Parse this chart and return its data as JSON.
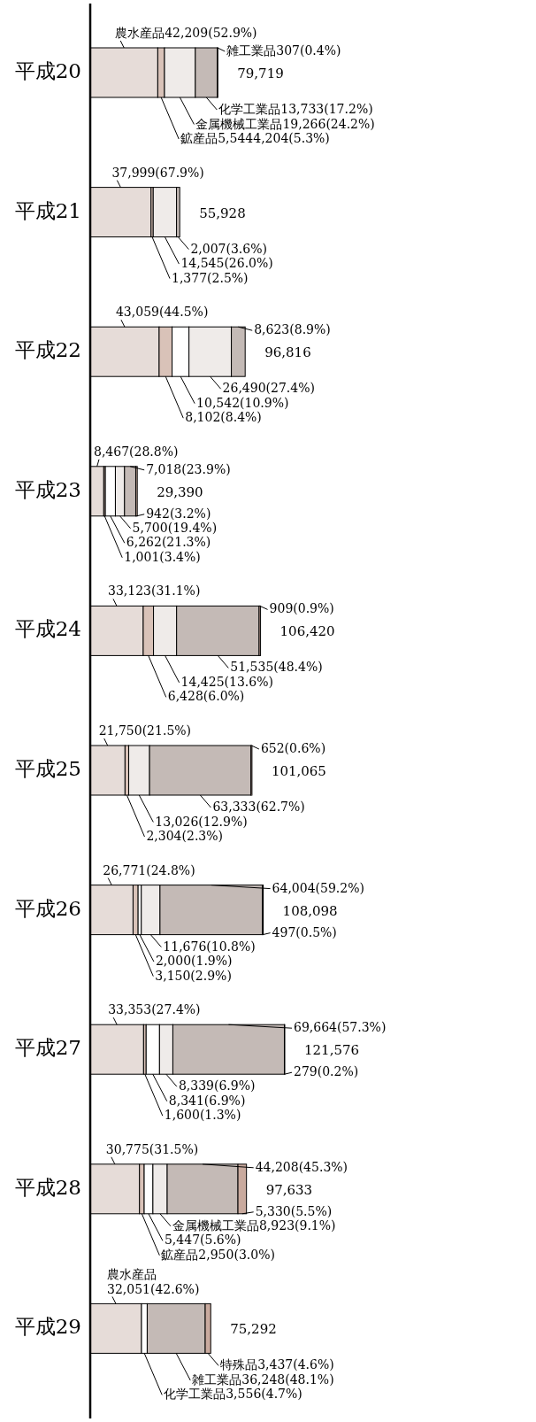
{
  "chart_data": {
    "type": "bar",
    "orientation": "horizontal",
    "stacked": true,
    "categories": [
      "平成20",
      "平成21",
      "平成22",
      "平成23",
      "平成24",
      "平成25",
      "平成26",
      "平成27",
      "平成28",
      "平成29"
    ],
    "series": [
      {
        "color": "#e6dcd8",
        "values": [
          42209,
          37999,
          43059,
          8467,
          33123,
          21750,
          26771,
          33353,
          30775,
          32051
        ],
        "value_labels": [
          "農水産品42,209(52.9%)",
          "37,999(67.9%)",
          "43,059(44.5%)",
          "8,467(28.8%)",
          "33,123(31.1%)",
          "21,750(21.5%)",
          "26,771(24.8%)",
          "33,353(27.4%)",
          "30,775(31.5%)",
          "農水産品\n32,051(42.6%)"
        ]
      },
      {
        "color": "#d9c2b8",
        "values": [
          4204,
          1377,
          8102,
          1001,
          6428,
          2304,
          3150,
          1600,
          2950,
          null
        ],
        "value_labels": [
          "鉱産品5,5444,204(5.3%)",
          "1,377(2.5%)",
          "8,102(8.4%)",
          "1,001(3.4%)",
          "6,428(6.0%)",
          "2,304(2.3%)",
          "3,150(2.9%)",
          "1,600(1.3%)",
          "鉱産品2,950(3.0%)",
          null
        ]
      },
      {
        "color": "#ffffff",
        "values": [
          null,
          null,
          10542,
          6262,
          null,
          null,
          2000,
          8341,
          5447,
          3556
        ],
        "value_labels": [
          null,
          null,
          "10,542(10.9%)",
          "6,262(21.3%)",
          null,
          null,
          "2,000(1.9%)",
          "8,341(6.9%)",
          "5,447(5.6%)",
          "化学工業品3,556(4.7%)"
        ]
      },
      {
        "color": "#efebe9",
        "values": [
          19266,
          14545,
          26490,
          5700,
          14425,
          13026,
          11676,
          8339,
          8923,
          null
        ],
        "value_labels": [
          "金属機械工業品19,266(24.2%)",
          "14,545(26.0%)",
          "26,490(27.4%)",
          "5,700(19.4%)",
          "14,425(13.6%)",
          "13,026(12.9%)",
          "11,676(10.8%)",
          "8,339(6.9%)",
          "金属機械工業品8,923(9.1%)",
          null
        ]
      },
      {
        "color": "#c4bab6",
        "values": [
          13733,
          2007,
          8623,
          7018,
          51535,
          63333,
          64004,
          69664,
          44208,
          36248
        ],
        "value_labels": [
          "化学工業品13,733(17.2%)",
          "2,007(3.6%)",
          "8,623(8.9%)",
          "7,018(23.9%)",
          "51,535(48.4%)",
          "63,333(62.7%)",
          "64,004(59.2%)",
          "69,664(57.3%)",
          "44,208(45.3%)",
          "雑工業品36,248(48.1%)"
        ]
      },
      {
        "color": "#c9aa9e",
        "values": [
          307,
          null,
          null,
          942,
          909,
          652,
          497,
          279,
          5330,
          3437
        ],
        "value_labels": [
          "雑工業品307(0.4%)",
          null,
          null,
          "942(3.2%)",
          "909(0.9%)",
          "652(0.6%)",
          "497(0.5%)",
          "279(0.2%)",
          "5,330(5.5%)",
          "特殊品3,437(4.6%)"
        ]
      }
    ],
    "totals": [
      "79,719",
      "55,928",
      "96,816",
      "29,390",
      "106,420",
      "101,065",
      "108,098",
      "121,576",
      "97,633",
      "75,292"
    ]
  }
}
